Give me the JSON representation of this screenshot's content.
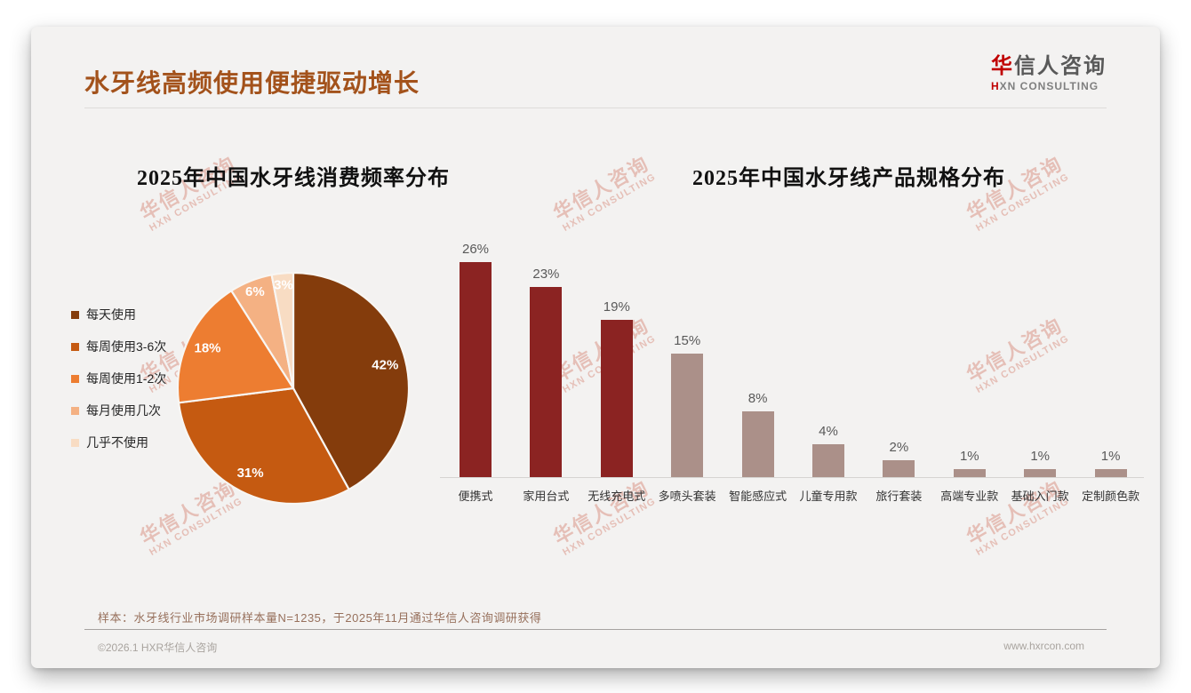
{
  "page": {
    "title": "水牙线高频使用便捷驱动增长",
    "logo": {
      "brand_first": "华",
      "brand_rest": "信人咨询",
      "sub_first": "H",
      "sub_rest": "XN CONSULTING"
    },
    "watermark": {
      "line1": "华信人咨询",
      "line2": "HXN CONSULTING"
    },
    "footnote": "样本：水牙线行业市场调研样本量N=1235，于2025年11月通过华信人咨询调研获得",
    "footer_left": "©2026.1 HXR华信人咨询",
    "footer_right": "www.hxrcon.com"
  },
  "colors": {
    "title_accent": "#A3521B",
    "logo_red": "#C00000",
    "slide_bg": "#F3F2F1",
    "watermark": "#D98E7E",
    "bar_primary": "#8B2322",
    "bar_secondary": "#AB9089",
    "value_label": "#595959"
  },
  "chart_data": [
    {
      "type": "pie",
      "title": "2025年中国水牙线消费频率分布",
      "labels": [
        "每天使用",
        "每周使用3-6次",
        "每周使用1-2次",
        "每月使用几次",
        "几乎不使用"
      ],
      "values": [
        42,
        31,
        18,
        6,
        3
      ],
      "slice_colors": [
        "#843C0C",
        "#C55A11",
        "#ED7D31",
        "#F4B183",
        "#F8DCC3"
      ],
      "data_label_suffix": "%",
      "legend_position": "left",
      "start_angle_deg": 0,
      "direction": "clockwise"
    },
    {
      "type": "bar",
      "title": "2025年中国水牙线产品规格分布",
      "categories": [
        "便携式",
        "家用台式",
        "无线充电式",
        "多喷头套装",
        "智能感应式",
        "儿童专用款",
        "旅行套装",
        "高端专业款",
        "基础入门款",
        "定制颜色款"
      ],
      "values": [
        26,
        23,
        19,
        15,
        8,
        4,
        2,
        1,
        1,
        1
      ],
      "bar_colors": [
        "#8B2322",
        "#8B2322",
        "#8B2322",
        "#AB9089",
        "#AB9089",
        "#AB9089",
        "#AB9089",
        "#AB9089",
        "#AB9089",
        "#AB9089"
      ],
      "data_label_suffix": "%",
      "ylim": [
        0,
        28
      ],
      "grid": false,
      "axis_line": true
    }
  ]
}
